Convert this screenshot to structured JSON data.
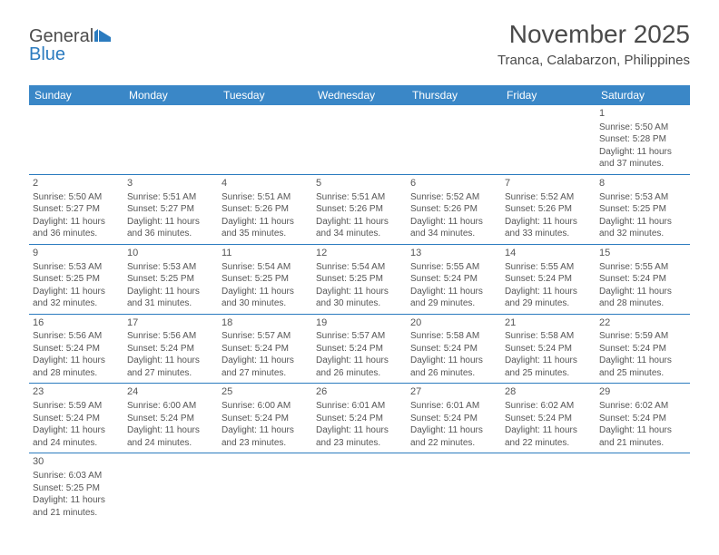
{
  "logo": {
    "name": "General",
    "suffix": "Blue"
  },
  "title": "November 2025",
  "location": "Tranca, Calabarzon, Philippines",
  "colors": {
    "header_bg": "#3a87c7",
    "header_text": "#ffffff",
    "cell_border": "#2b7bbf",
    "body_text": "#555555",
    "logo_gray": "#4d4d4d",
    "logo_blue": "#2b7bbf"
  },
  "weekdays": [
    "Sunday",
    "Monday",
    "Tuesday",
    "Wednesday",
    "Thursday",
    "Friday",
    "Saturday"
  ],
  "weeks": [
    [
      null,
      null,
      null,
      null,
      null,
      null,
      {
        "d": "1",
        "sr": "5:50 AM",
        "ss": "5:28 PM",
        "dl": "11 hours and 37 minutes."
      }
    ],
    [
      {
        "d": "2",
        "sr": "5:50 AM",
        "ss": "5:27 PM",
        "dl": "11 hours and 36 minutes."
      },
      {
        "d": "3",
        "sr": "5:51 AM",
        "ss": "5:27 PM",
        "dl": "11 hours and 36 minutes."
      },
      {
        "d": "4",
        "sr": "5:51 AM",
        "ss": "5:26 PM",
        "dl": "11 hours and 35 minutes."
      },
      {
        "d": "5",
        "sr": "5:51 AM",
        "ss": "5:26 PM",
        "dl": "11 hours and 34 minutes."
      },
      {
        "d": "6",
        "sr": "5:52 AM",
        "ss": "5:26 PM",
        "dl": "11 hours and 34 minutes."
      },
      {
        "d": "7",
        "sr": "5:52 AM",
        "ss": "5:26 PM",
        "dl": "11 hours and 33 minutes."
      },
      {
        "d": "8",
        "sr": "5:53 AM",
        "ss": "5:25 PM",
        "dl": "11 hours and 32 minutes."
      }
    ],
    [
      {
        "d": "9",
        "sr": "5:53 AM",
        "ss": "5:25 PM",
        "dl": "11 hours and 32 minutes."
      },
      {
        "d": "10",
        "sr": "5:53 AM",
        "ss": "5:25 PM",
        "dl": "11 hours and 31 minutes."
      },
      {
        "d": "11",
        "sr": "5:54 AM",
        "ss": "5:25 PM",
        "dl": "11 hours and 30 minutes."
      },
      {
        "d": "12",
        "sr": "5:54 AM",
        "ss": "5:25 PM",
        "dl": "11 hours and 30 minutes."
      },
      {
        "d": "13",
        "sr": "5:55 AM",
        "ss": "5:24 PM",
        "dl": "11 hours and 29 minutes."
      },
      {
        "d": "14",
        "sr": "5:55 AM",
        "ss": "5:24 PM",
        "dl": "11 hours and 29 minutes."
      },
      {
        "d": "15",
        "sr": "5:55 AM",
        "ss": "5:24 PM",
        "dl": "11 hours and 28 minutes."
      }
    ],
    [
      {
        "d": "16",
        "sr": "5:56 AM",
        "ss": "5:24 PM",
        "dl": "11 hours and 28 minutes."
      },
      {
        "d": "17",
        "sr": "5:56 AM",
        "ss": "5:24 PM",
        "dl": "11 hours and 27 minutes."
      },
      {
        "d": "18",
        "sr": "5:57 AM",
        "ss": "5:24 PM",
        "dl": "11 hours and 27 minutes."
      },
      {
        "d": "19",
        "sr": "5:57 AM",
        "ss": "5:24 PM",
        "dl": "11 hours and 26 minutes."
      },
      {
        "d": "20",
        "sr": "5:58 AM",
        "ss": "5:24 PM",
        "dl": "11 hours and 26 minutes."
      },
      {
        "d": "21",
        "sr": "5:58 AM",
        "ss": "5:24 PM",
        "dl": "11 hours and 25 minutes."
      },
      {
        "d": "22",
        "sr": "5:59 AM",
        "ss": "5:24 PM",
        "dl": "11 hours and 25 minutes."
      }
    ],
    [
      {
        "d": "23",
        "sr": "5:59 AM",
        "ss": "5:24 PM",
        "dl": "11 hours and 24 minutes."
      },
      {
        "d": "24",
        "sr": "6:00 AM",
        "ss": "5:24 PM",
        "dl": "11 hours and 24 minutes."
      },
      {
        "d": "25",
        "sr": "6:00 AM",
        "ss": "5:24 PM",
        "dl": "11 hours and 23 minutes."
      },
      {
        "d": "26",
        "sr": "6:01 AM",
        "ss": "5:24 PM",
        "dl": "11 hours and 23 minutes."
      },
      {
        "d": "27",
        "sr": "6:01 AM",
        "ss": "5:24 PM",
        "dl": "11 hours and 22 minutes."
      },
      {
        "d": "28",
        "sr": "6:02 AM",
        "ss": "5:24 PM",
        "dl": "11 hours and 22 minutes."
      },
      {
        "d": "29",
        "sr": "6:02 AM",
        "ss": "5:24 PM",
        "dl": "11 hours and 21 minutes."
      }
    ],
    [
      {
        "d": "30",
        "sr": "6:03 AM",
        "ss": "5:25 PM",
        "dl": "11 hours and 21 minutes."
      },
      null,
      null,
      null,
      null,
      null,
      null
    ]
  ],
  "labels": {
    "sunrise": "Sunrise:",
    "sunset": "Sunset:",
    "daylight": "Daylight:"
  }
}
